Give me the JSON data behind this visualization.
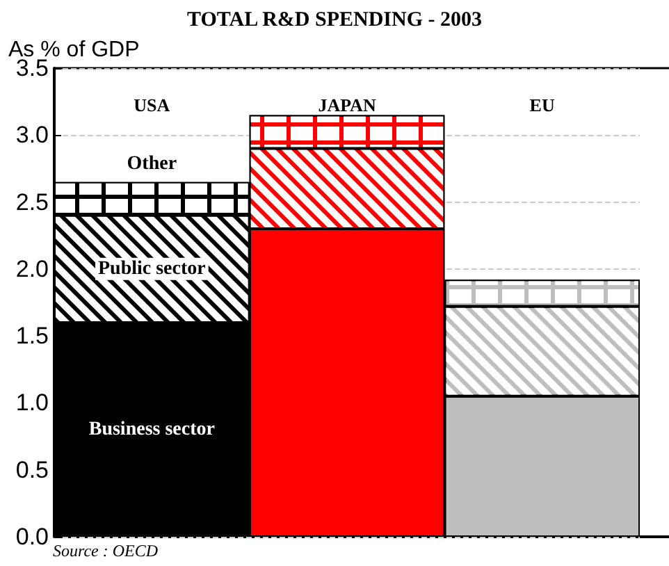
{
  "chart_data": {
    "type": "bar",
    "title": "TOTAL R&D SPENDING - 2003",
    "ylabel": "As % of GDP",
    "categories": [
      "USA",
      "JAPAN",
      "EU"
    ],
    "stacked": true,
    "series": [
      {
        "name": "Business sector",
        "colors": [
          "#000000",
          "#ff0000",
          "#bebebe"
        ],
        "values": [
          1.6,
          2.3,
          1.05
        ]
      },
      {
        "name": "Public sector",
        "colors": [
          "#000000",
          "#ff0000",
          "#bebebe"
        ],
        "values": [
          0.8,
          0.6,
          0.67
        ]
      },
      {
        "name": "Other",
        "colors": [
          "#000000",
          "#ff0000",
          "#bebebe"
        ],
        "values": [
          0.25,
          0.25,
          0.2
        ]
      }
    ],
    "ylim": [
      0,
      3.5
    ],
    "yticks": [
      {
        "value": 0,
        "label": "0.0"
      },
      {
        "value": 0.5,
        "label": "0.5"
      },
      {
        "value": 1,
        "label": "1.0"
      },
      {
        "value": 1.5,
        "label": "1.5"
      },
      {
        "value": 2,
        "label": "2.0"
      },
      {
        "value": 2.5,
        "label": "2.5"
      },
      {
        "value": 3,
        "label": "3.0"
      },
      {
        "value": 3.5,
        "label": "3.5"
      }
    ],
    "grid": "y",
    "annotations": [
      "Source : OECD"
    ]
  }
}
